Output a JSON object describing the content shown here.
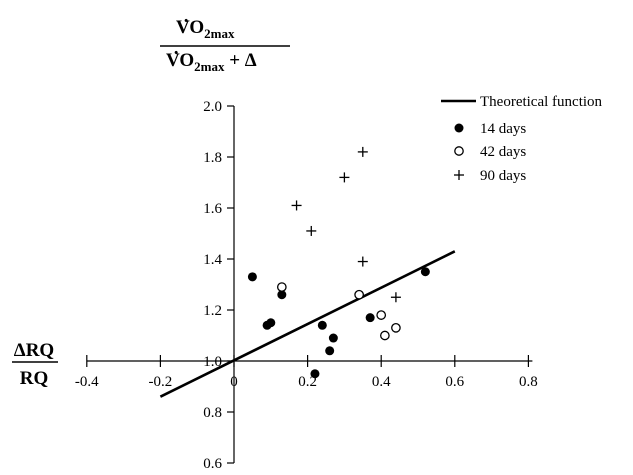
{
  "chart_data": {
    "type": "scatter",
    "x_tick_labels": [
      "-0.4",
      "-0.2",
      "0",
      "0.2",
      "0.4",
      "0.6",
      "0.8"
    ],
    "x_ticks": [
      -0.4,
      -0.2,
      0,
      0.2,
      0.4,
      0.6,
      0.8
    ],
    "y_tick_labels": [
      "0.6",
      "0.8",
      "1.0",
      "1.2",
      "1.4",
      "1.6",
      "1.8",
      "2.0"
    ],
    "y_ticks": [
      0.6,
      0.8,
      1.0,
      1.2,
      1.4,
      1.6,
      1.8,
      2.0
    ],
    "xlim": [
      -0.4,
      0.8
    ],
    "ylim": [
      0.6,
      2.0
    ],
    "x_axis_crosses_y_at": 1.0,
    "y_axis_crosses_x_at": 0,
    "ylabel": {
      "numerator": {
        "dot": "·",
        "main": "VO",
        "sub": "2max"
      },
      "denominator": {
        "dot": "·",
        "main": "VO",
        "sub": "2max",
        "tail": " + Δ"
      }
    },
    "xlabel": {
      "numerator": "ΔRQ",
      "denominator": "RQ"
    },
    "legend_position": "top-right",
    "grid": false,
    "series": [
      {
        "name": "Theoretical function",
        "kind": "line",
        "x": [
          -0.2,
          0.6
        ],
        "y": [
          0.86,
          1.43
        ]
      },
      {
        "name": "14 days",
        "kind": "filled-circle",
        "x": [
          0.05,
          0.09,
          0.1,
          0.13,
          0.22,
          0.24,
          0.26,
          0.27,
          0.37,
          0.52
        ],
        "y": [
          1.33,
          1.14,
          1.15,
          1.26,
          0.95,
          1.14,
          1.04,
          1.09,
          1.17,
          1.35
        ]
      },
      {
        "name": "42 days",
        "kind": "open-circle",
        "x": [
          0.13,
          0.34,
          0.4,
          0.41,
          0.44
        ],
        "y": [
          1.29,
          1.26,
          1.18,
          1.1,
          1.13
        ]
      },
      {
        "name": "90 days",
        "kind": "plus",
        "x": [
          0.17,
          0.21,
          0.3,
          0.35,
          0.35,
          0.44
        ],
        "y": [
          1.61,
          1.51,
          1.72,
          1.82,
          1.39,
          1.25
        ]
      }
    ]
  }
}
